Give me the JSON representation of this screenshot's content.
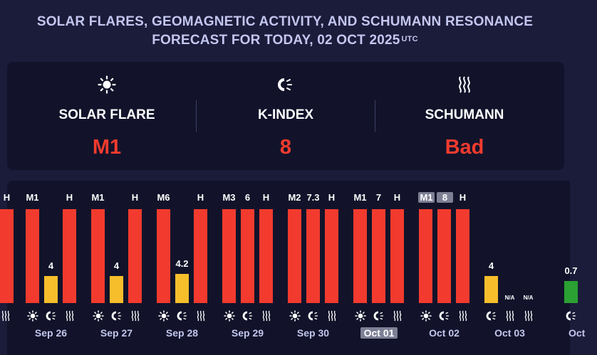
{
  "header": {
    "line1": "SOLAR FLARES, GEOMAGNETIC ACTIVITY, AND SCHUMANN RESONANCE",
    "line2": "FORECAST FOR TODAY, 02 OCT 2025",
    "utc": "UTC"
  },
  "summary": [
    {
      "icon": "sun-icon",
      "label": "SOLAR FLARE",
      "value": "M1"
    },
    {
      "icon": "magnet-icon",
      "label": "K-INDEX",
      "value": "8"
    },
    {
      "icon": "schumann-wave-icon",
      "label": "SCHUMANN",
      "value": "Bad"
    }
  ],
  "colors": {
    "red": "#f23b2e",
    "yellow": "#f7be2c",
    "green": "#2aa132",
    "label": "#c3c6ee"
  },
  "chart_data": {
    "type": "bar",
    "days": [
      {
        "date": "Sep 26",
        "flare": "M1",
        "kindex": 4,
        "schumann": "H",
        "flare_color": "red",
        "k_color": "yellow",
        "s_color": "red"
      },
      {
        "date": "Sep 27",
        "flare": "M1",
        "kindex": 4,
        "schumann": "H",
        "flare_color": "red",
        "k_color": "yellow",
        "s_color": "red"
      },
      {
        "date": "Sep 28",
        "flare": "M6",
        "kindex": 4.2,
        "schumann": "H",
        "flare_color": "red",
        "k_color": "yellow",
        "s_color": "red"
      },
      {
        "date": "Sep 29",
        "flare": "M3",
        "kindex": 6,
        "schumann": "H",
        "flare_color": "red",
        "k_color": "red",
        "s_color": "red"
      },
      {
        "date": "Sep 30",
        "flare": "M2",
        "kindex": 7.3,
        "schumann": "H",
        "flare_color": "red",
        "k_color": "red",
        "s_color": "red"
      },
      {
        "date": "Oct 01",
        "flare": "M1",
        "kindex": 7,
        "schumann": "H",
        "flare_color": "red",
        "k_color": "red",
        "s_color": "red"
      },
      {
        "date": "Oct 02",
        "flare": "M1",
        "kindex": 8,
        "schumann": "H",
        "flare_color": "red",
        "k_color": "red",
        "s_color": "red",
        "today": true
      },
      {
        "date": "Oct 03",
        "kindex": 4,
        "k_color": "yellow",
        "forecast": true,
        "flare_text": "",
        "schumann_text": "N/A",
        "third_text": "N/A"
      },
      {
        "date": "Oct",
        "kindex": 0.7,
        "k_color": "green",
        "forecast": true
      }
    ],
    "left_partial_label": "H"
  }
}
